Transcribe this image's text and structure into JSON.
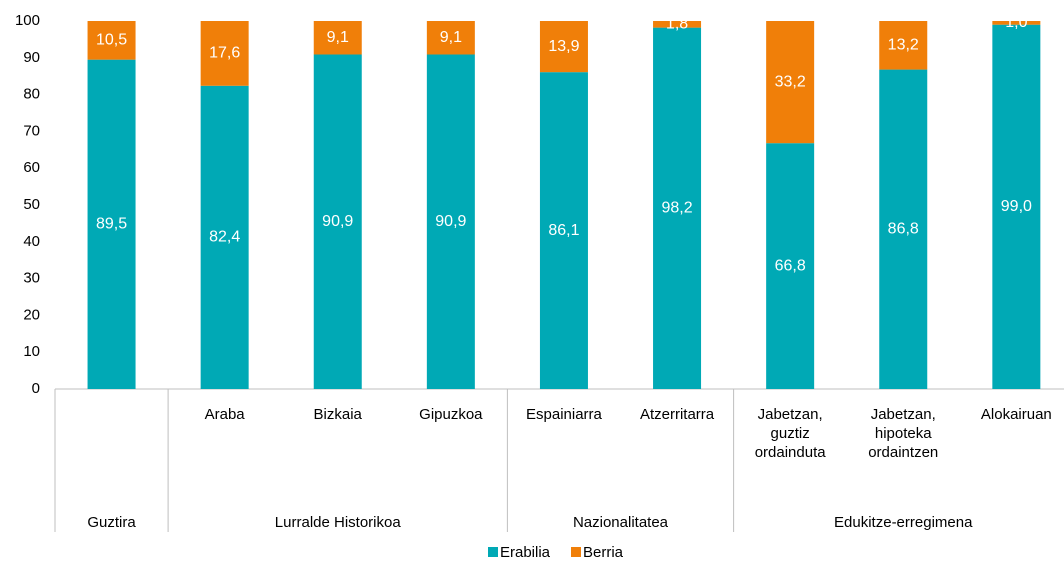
{
  "chart_data": {
    "type": "stacked_bar",
    "categories": [
      null,
      "Araba",
      "Bizkaia",
      "Gipuzkoa",
      "Espainiarra",
      "Atzerritarra",
      "Jabetzan, guztiz ordainduta",
      "Jabetzan, hipoteka ordaintzen",
      "Alokairuan"
    ],
    "groups": [
      {
        "name": "Guztira",
        "count": 1
      },
      {
        "name": "Lurralde Historikoa",
        "count": 3
      },
      {
        "name": "Nazionalitatea",
        "count": 2
      },
      {
        "name": "Edukitze-erregimena",
        "count": 3
      }
    ],
    "series": [
      {
        "name": "Erabilia",
        "color": "#00a9b5",
        "values": [
          89.5,
          82.4,
          90.9,
          90.9,
          86.1,
          98.2,
          66.8,
          86.8,
          99.0
        ],
        "value_labels": [
          "89,5",
          "82,4",
          "90,9",
          "90,9",
          "86,1",
          "98,2",
          "66,8",
          "86,8",
          "99,0"
        ]
      },
      {
        "name": "Berria",
        "color": "#f07f09",
        "values": [
          10.5,
          17.6,
          9.1,
          9.1,
          13.9,
          1.8,
          33.2,
          13.2,
          1.0
        ],
        "value_labels": [
          "10,5",
          "17,6",
          "9,1",
          "9,1",
          "13,9",
          "1,8",
          "33,2",
          "13,2",
          "1,0"
        ]
      }
    ],
    "ylim": [
      0,
      100
    ],
    "yticks": [
      0,
      10,
      20,
      30,
      40,
      50,
      60,
      70,
      80,
      90,
      100
    ],
    "grid": false,
    "legend": "bottom"
  }
}
